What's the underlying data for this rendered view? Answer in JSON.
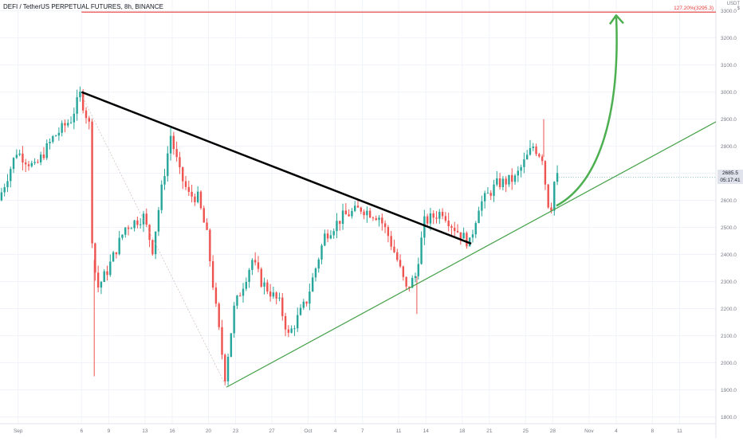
{
  "header": {
    "title": "DEFI / TetherUS PERPETUAL FUTURES, 8h, BINANCE",
    "currency": "USDT",
    "currency_sub": "$"
  },
  "chart_data": {
    "type": "candlestick",
    "ylim": [
      1775,
      3340
    ],
    "y_ticks": [
      1800,
      1900,
      2000,
      2100,
      2200,
      2300,
      2400,
      2500,
      2600,
      2700,
      2800,
      2900,
      3000,
      3100,
      3200,
      3300
    ],
    "y_tick_labels": [
      "1800.0",
      "1900.0",
      "2000.0",
      "2100.0",
      "2200.0",
      "2300.0",
      "2400.0",
      "2500.0",
      "2600.0",
      "2700.0",
      "2800.0",
      "2900.0",
      "3000.0",
      "3100.0",
      "3200.0",
      "3300.0"
    ],
    "x_start": "2021-08-28",
    "x_end": "2021-11-15",
    "x_ticks": [
      {
        "date": "2021-08-30",
        "label": "Sep"
      },
      {
        "date": "2021-09-06",
        "label": "6"
      },
      {
        "date": "2021-09-09",
        "label": "9"
      },
      {
        "date": "2021-09-13",
        "label": "13"
      },
      {
        "date": "2021-09-16",
        "label": "16"
      },
      {
        "date": "2021-09-20",
        "label": "20"
      },
      {
        "date": "2021-09-23",
        "label": "23"
      },
      {
        "date": "2021-09-27",
        "label": "27"
      },
      {
        "date": "2021-10-01",
        "label": "Oct"
      },
      {
        "date": "2021-10-04",
        "label": "4"
      },
      {
        "date": "2021-10-07",
        "label": "7"
      },
      {
        "date": "2021-10-11",
        "label": "11"
      },
      {
        "date": "2021-10-14",
        "label": "14"
      },
      {
        "date": "2021-10-18",
        "label": "18"
      },
      {
        "date": "2021-10-21",
        "label": "21"
      },
      {
        "date": "2021-10-25",
        "label": "25"
      },
      {
        "date": "2021-10-28",
        "label": "28"
      },
      {
        "date": "2021-11-01",
        "label": "Nov"
      },
      {
        "date": "2021-11-04",
        "label": "4"
      },
      {
        "date": "2021-11-08",
        "label": "8"
      },
      {
        "date": "2021-11-11",
        "label": "11"
      }
    ],
    "colors": {
      "up": "#26a69a",
      "down": "#ef5350",
      "resistance": "#000000",
      "support": "#43a047",
      "target": "#e53935",
      "projection": "#4caf50",
      "grid": "#f0f3fa",
      "axis_text": "#787b86"
    },
    "path_anchors": [
      {
        "d": "2021-08-28",
        "p": 2600
      },
      {
        "d": "2021-08-30",
        "p": 2780
      },
      {
        "d": "2021-09-01",
        "p": 2720
      },
      {
        "d": "2021-09-03",
        "p": 2830
      },
      {
        "d": "2021-09-05",
        "p": 2900
      },
      {
        "d": "2021-09-06",
        "p": 2990
      },
      {
        "d": "2021-09-07",
        "p": 2880
      },
      {
        "d": "2021-09-07.4",
        "p": 2380
      },
      {
        "d": "2021-09-08",
        "p": 2280
      },
      {
        "d": "2021-09-09",
        "p": 2340
      },
      {
        "d": "2021-09-11",
        "p": 2500
      },
      {
        "d": "2021-09-13",
        "p": 2540
      },
      {
        "d": "2021-09-14",
        "p": 2420
      },
      {
        "d": "2021-09-15",
        "p": 2640
      },
      {
        "d": "2021-09-16",
        "p": 2840
      },
      {
        "d": "2021-09-17",
        "p": 2700
      },
      {
        "d": "2021-09-18",
        "p": 2620
      },
      {
        "d": "2021-09-19",
        "p": 2610
      },
      {
        "d": "2021-09-20",
        "p": 2470
      },
      {
        "d": "2021-09-21",
        "p": 2200
      },
      {
        "d": "2021-09-22",
        "p": 1950
      },
      {
        "d": "2021-09-23",
        "p": 2200
      },
      {
        "d": "2021-09-25",
        "p": 2380
      },
      {
        "d": "2021-09-26",
        "p": 2300
      },
      {
        "d": "2021-09-28",
        "p": 2220
      },
      {
        "d": "2021-09-29",
        "p": 2100
      },
      {
        "d": "2021-10-01",
        "p": 2230
      },
      {
        "d": "2021-10-03",
        "p": 2470
      },
      {
        "d": "2021-10-05",
        "p": 2540
      },
      {
        "d": "2021-10-07",
        "p": 2570
      },
      {
        "d": "2021-10-09",
        "p": 2540
      },
      {
        "d": "2021-10-10",
        "p": 2470
      },
      {
        "d": "2021-10-11",
        "p": 2380
      },
      {
        "d": "2021-10-12",
        "p": 2270
      },
      {
        "d": "2021-10-13",
        "p": 2320
      },
      {
        "d": "2021-10-14",
        "p": 2520
      },
      {
        "d": "2021-10-16",
        "p": 2560
      },
      {
        "d": "2021-10-17",
        "p": 2510
      },
      {
        "d": "2021-10-19",
        "p": 2440
      },
      {
        "d": "2021-10-20",
        "p": 2580
      },
      {
        "d": "2021-10-22",
        "p": 2660
      },
      {
        "d": "2021-10-24",
        "p": 2680
      },
      {
        "d": "2021-10-26",
        "p": 2800
      },
      {
        "d": "2021-10-27",
        "p": 2760
      },
      {
        "d": "2021-10-27.6",
        "p": 2590
      },
      {
        "d": "2021-10-28",
        "p": 2580
      },
      {
        "d": "2021-10-28.4",
        "p": 2685.5
      }
    ],
    "spikes": [
      {
        "d": "2021-09-07.4",
        "low": 1950
      },
      {
        "d": "2021-10-27",
        "high": 2900
      },
      {
        "d": "2021-10-13",
        "low": 2180
      }
    ],
    "trendlines": [
      {
        "name": "resistance",
        "from": {
          "d": "2021-09-06",
          "p": 3000
        },
        "to": {
          "d": "2021-10-19",
          "p": 2440
        }
      },
      {
        "name": "support",
        "from": {
          "d": "2021-09-22",
          "p": 1910
        },
        "to": {
          "d": "2021-11-15",
          "p": 2890
        }
      },
      {
        "name": "guide",
        "from": {
          "d": "2021-09-06",
          "p": 2990
        },
        "to": {
          "d": "2021-09-22",
          "p": 1910
        }
      }
    ],
    "projection": {
      "from": {
        "d": "2021-10-28.4",
        "p": 2580
      },
      "to": {
        "d": "2021-11-04",
        "p": 3295
      }
    },
    "target": {
      "label": "127.20%(3295.3)",
      "value": 3295.3,
      "from": "2021-09-06"
    },
    "last_price": {
      "value": "2685.5",
      "countdown": "05:17:41"
    }
  }
}
